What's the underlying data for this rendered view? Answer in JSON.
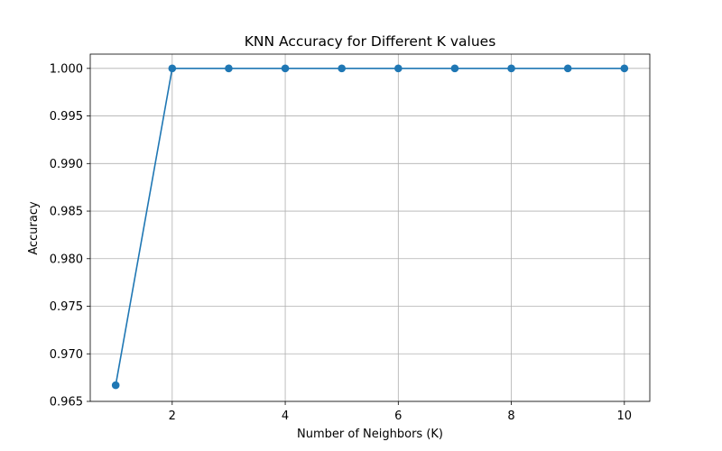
{
  "chart_data": {
    "type": "line",
    "title": "KNN Accuracy for Different K values",
    "xlabel": "Number of Neighbors (K)",
    "ylabel": "Accuracy",
    "xlim": [
      0.55,
      10.45
    ],
    "ylim": [
      0.965,
      1.0015
    ],
    "xticks": [
      2,
      4,
      6,
      8,
      10
    ],
    "xtick_labels": [
      "2",
      "4",
      "6",
      "8",
      "10"
    ],
    "yticks": [
      0.965,
      0.97,
      0.975,
      0.98,
      0.985,
      0.99,
      0.995,
      1.0
    ],
    "ytick_labels": [
      "0.965",
      "0.970",
      "0.975",
      "0.980",
      "0.985",
      "0.990",
      "0.995",
      "1.000"
    ],
    "grid": true,
    "series": [
      {
        "x": [
          1,
          2,
          3,
          4,
          5,
          6,
          7,
          8,
          9,
          10
        ],
        "values": [
          0.9667,
          1.0,
          1.0,
          1.0,
          1.0,
          1.0,
          1.0,
          1.0,
          1.0,
          1.0
        ],
        "color": "#1f77b4",
        "marker": "circle"
      }
    ]
  }
}
